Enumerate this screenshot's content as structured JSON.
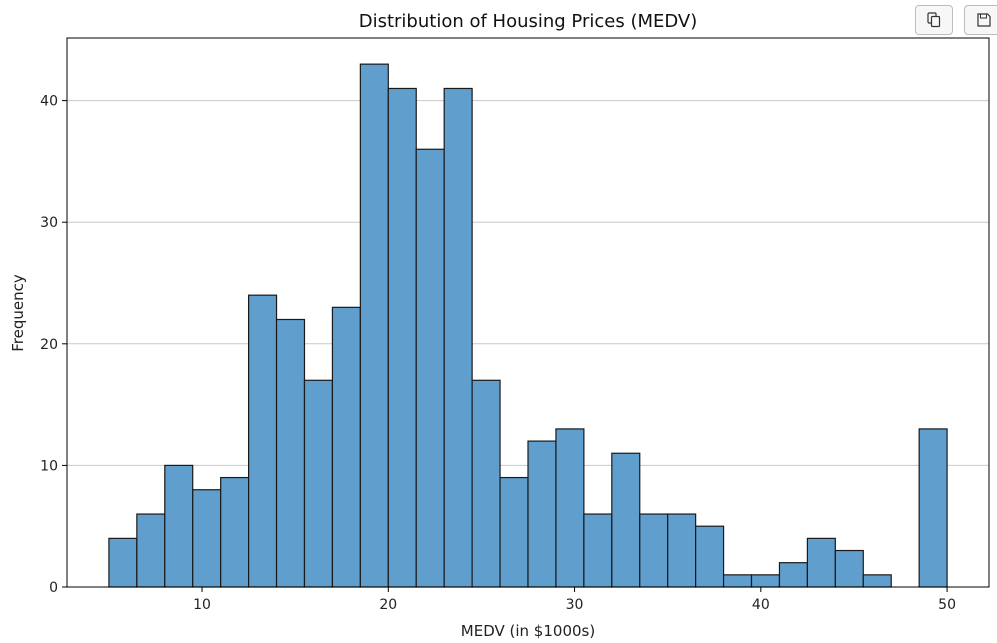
{
  "toolbar": {
    "copy_icon": "copy-icon",
    "save_icon": "save-icon"
  },
  "chart_data": {
    "type": "bar",
    "title": "Distribution of Housing Prices (MEDV)",
    "xlabel": "MEDV (in $1000s)",
    "ylabel": "Frequency",
    "bin_edges": [
      5.0,
      6.5,
      8.0,
      9.5,
      11.0,
      12.5,
      14.0,
      15.5,
      17.0,
      18.5,
      20.0,
      21.5,
      23.0,
      24.5,
      26.0,
      27.5,
      29.0,
      30.5,
      32.0,
      33.5,
      35.0,
      36.5,
      38.0,
      39.5,
      41.0,
      42.5,
      44.0,
      45.5,
      47.0,
      48.5,
      50.0
    ],
    "values": [
      4,
      6,
      10,
      8,
      9,
      24,
      22,
      17,
      23,
      43,
      41,
      36,
      41,
      17,
      9,
      12,
      13,
      6,
      11,
      6,
      6,
      5,
      1,
      1,
      2,
      4,
      3,
      1,
      0,
      13
    ],
    "xlim": [
      2.75,
      52.25
    ],
    "ylim": [
      0,
      45.15
    ],
    "xticks": [
      10,
      20,
      30,
      40,
      50
    ],
    "yticks": [
      0,
      10,
      20,
      30,
      40
    ],
    "grid": "y-axis only",
    "bar_color": "#5f9ecd",
    "edge_color": "#1a1a1a"
  }
}
